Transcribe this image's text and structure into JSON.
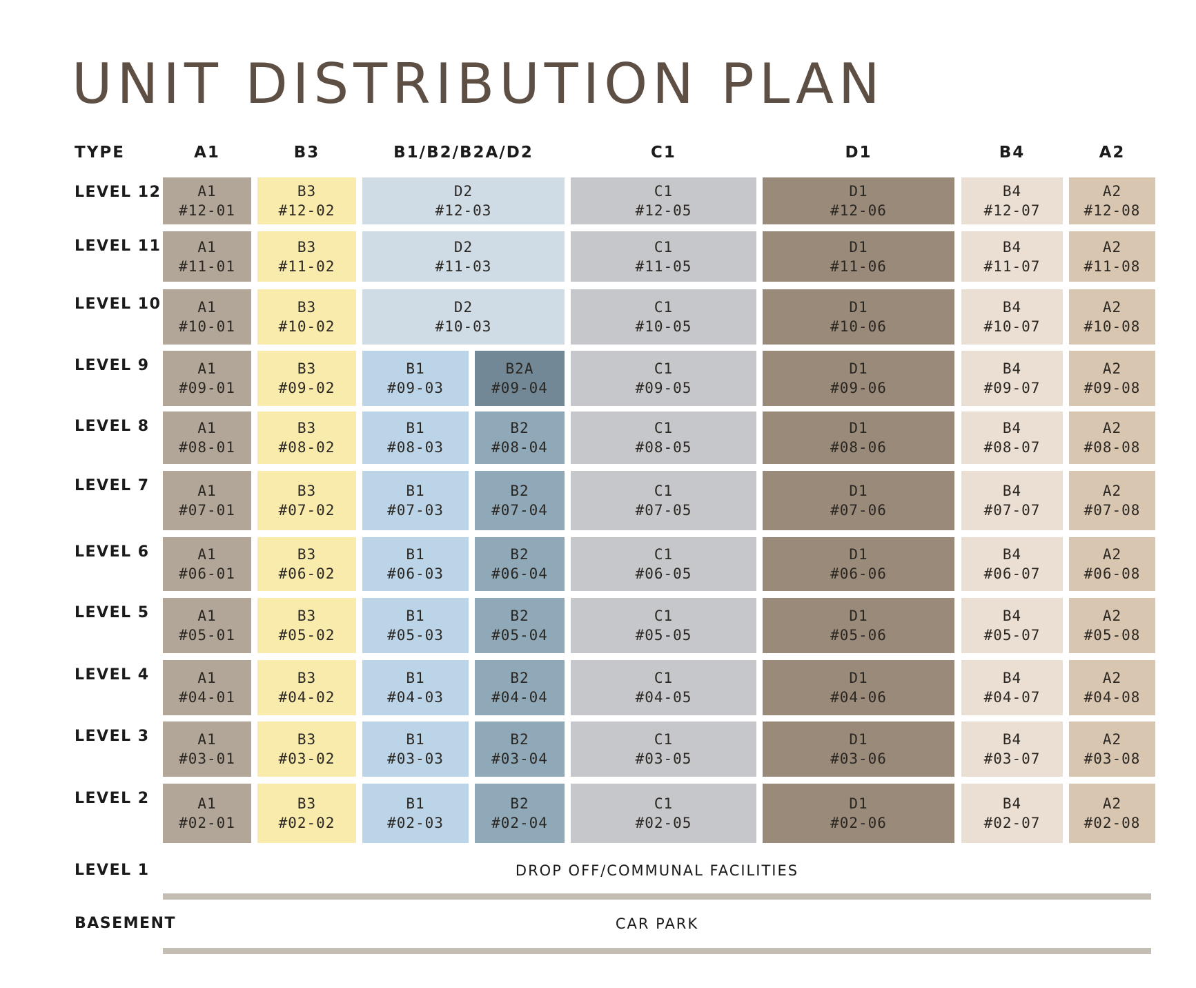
{
  "title": "UNIT DISTRIBUTION PLAN",
  "header": {
    "type_label": "TYPE",
    "columns": [
      "A1",
      "B3",
      "B1/B2/B2A/D2",
      "C1",
      "D1",
      "B4",
      "A2"
    ]
  },
  "type_colors": {
    "A1": "#b1a697",
    "B3": "#f8ebac",
    "D2": "#cfdce6",
    "B1": "#bbd4e7",
    "B2": "#8fa9b8",
    "B2A": "#728896",
    "C1": "#c5c7ca",
    "D1": "#9a8a7a",
    "B4": "#eadfd2",
    "A2": "#d9c6b0"
  },
  "levels": [
    {
      "label": "LEVEL 12",
      "units": [
        {
          "type": "A1",
          "unit": "#12-01"
        },
        {
          "type": "B3",
          "unit": "#12-02"
        },
        {
          "type": "D2",
          "unit": "#12-03"
        },
        {
          "type": "C1",
          "unit": "#12-05"
        },
        {
          "type": "D1",
          "unit": "#12-06"
        },
        {
          "type": "B4",
          "unit": "#12-07"
        },
        {
          "type": "A2",
          "unit": "#12-08"
        }
      ]
    },
    {
      "label": "LEVEL 11",
      "units": [
        {
          "type": "A1",
          "unit": "#11-01"
        },
        {
          "type": "B3",
          "unit": "#11-02"
        },
        {
          "type": "D2",
          "unit": "#11-03"
        },
        {
          "type": "C1",
          "unit": "#11-05"
        },
        {
          "type": "D1",
          "unit": "#11-06"
        },
        {
          "type": "B4",
          "unit": "#11-07"
        },
        {
          "type": "A2",
          "unit": "#11-08"
        }
      ]
    },
    {
      "label": "LEVEL 10",
      "units": [
        {
          "type": "A1",
          "unit": "#10-01"
        },
        {
          "type": "B3",
          "unit": "#10-02"
        },
        {
          "type": "D2",
          "unit": "#10-03"
        },
        {
          "type": "C1",
          "unit": "#10-05"
        },
        {
          "type": "D1",
          "unit": "#10-06"
        },
        {
          "type": "B4",
          "unit": "#10-07"
        },
        {
          "type": "A2",
          "unit": "#10-08"
        }
      ]
    },
    {
      "label": "LEVEL 9",
      "units": [
        {
          "type": "A1",
          "unit": "#09-01"
        },
        {
          "type": "B3",
          "unit": "#09-02"
        },
        {
          "type": "B1",
          "unit": "#09-03"
        },
        {
          "type": "B2A",
          "unit": "#09-04"
        },
        {
          "type": "C1",
          "unit": "#09-05"
        },
        {
          "type": "D1",
          "unit": "#09-06"
        },
        {
          "type": "B4",
          "unit": "#09-07"
        },
        {
          "type": "A2",
          "unit": "#09-08"
        }
      ]
    },
    {
      "label": "LEVEL 8",
      "units": [
        {
          "type": "A1",
          "unit": "#08-01"
        },
        {
          "type": "B3",
          "unit": "#08-02"
        },
        {
          "type": "B1",
          "unit": "#08-03"
        },
        {
          "type": "B2",
          "unit": "#08-04"
        },
        {
          "type": "C1",
          "unit": "#08-05"
        },
        {
          "type": "D1",
          "unit": "#08-06"
        },
        {
          "type": "B4",
          "unit": "#08-07"
        },
        {
          "type": "A2",
          "unit": "#08-08"
        }
      ]
    },
    {
      "label": "LEVEL 7",
      "units": [
        {
          "type": "A1",
          "unit": "#07-01"
        },
        {
          "type": "B3",
          "unit": "#07-02"
        },
        {
          "type": "B1",
          "unit": "#07-03"
        },
        {
          "type": "B2",
          "unit": "#07-04"
        },
        {
          "type": "C1",
          "unit": "#07-05"
        },
        {
          "type": "D1",
          "unit": "#07-06"
        },
        {
          "type": "B4",
          "unit": "#07-07"
        },
        {
          "type": "A2",
          "unit": "#07-08"
        }
      ]
    },
    {
      "label": "LEVEL 6",
      "units": [
        {
          "type": "A1",
          "unit": "#06-01"
        },
        {
          "type": "B3",
          "unit": "#06-02"
        },
        {
          "type": "B1",
          "unit": "#06-03"
        },
        {
          "type": "B2",
          "unit": "#06-04"
        },
        {
          "type": "C1",
          "unit": "#06-05"
        },
        {
          "type": "D1",
          "unit": "#06-06"
        },
        {
          "type": "B4",
          "unit": "#06-07"
        },
        {
          "type": "A2",
          "unit": "#06-08"
        }
      ]
    },
    {
      "label": "LEVEL 5",
      "units": [
        {
          "type": "A1",
          "unit": "#05-01"
        },
        {
          "type": "B3",
          "unit": "#05-02"
        },
        {
          "type": "B1",
          "unit": "#05-03"
        },
        {
          "type": "B2",
          "unit": "#05-04"
        },
        {
          "type": "C1",
          "unit": "#05-05"
        },
        {
          "type": "D1",
          "unit": "#05-06"
        },
        {
          "type": "B4",
          "unit": "#05-07"
        },
        {
          "type": "A2",
          "unit": "#05-08"
        }
      ]
    },
    {
      "label": "LEVEL 4",
      "units": [
        {
          "type": "A1",
          "unit": "#04-01"
        },
        {
          "type": "B3",
          "unit": "#04-02"
        },
        {
          "type": "B1",
          "unit": "#04-03"
        },
        {
          "type": "B2",
          "unit": "#04-04"
        },
        {
          "type": "C1",
          "unit": "#04-05"
        },
        {
          "type": "D1",
          "unit": "#04-06"
        },
        {
          "type": "B4",
          "unit": "#04-07"
        },
        {
          "type": "A2",
          "unit": "#04-08"
        }
      ]
    },
    {
      "label": "LEVEL 3",
      "units": [
        {
          "type": "A1",
          "unit": "#03-01"
        },
        {
          "type": "B3",
          "unit": "#03-02"
        },
        {
          "type": "B1",
          "unit": "#03-03"
        },
        {
          "type": "B2",
          "unit": "#03-04"
        },
        {
          "type": "C1",
          "unit": "#03-05"
        },
        {
          "type": "D1",
          "unit": "#03-06"
        },
        {
          "type": "B4",
          "unit": "#03-07"
        },
        {
          "type": "A2",
          "unit": "#03-08"
        }
      ]
    },
    {
      "label": "LEVEL 2",
      "units": [
        {
          "type": "A1",
          "unit": "#02-01"
        },
        {
          "type": "B3",
          "unit": "#02-02"
        },
        {
          "type": "B1",
          "unit": "#02-03"
        },
        {
          "type": "B2",
          "unit": "#02-04"
        },
        {
          "type": "C1",
          "unit": "#02-05"
        },
        {
          "type": "D1",
          "unit": "#02-06"
        },
        {
          "type": "B4",
          "unit": "#02-07"
        },
        {
          "type": "A2",
          "unit": "#02-08"
        }
      ]
    }
  ],
  "level1": {
    "label": "LEVEL 1",
    "text": "DROP OFF/COMMUNAL FACILITIES"
  },
  "basement": {
    "label": "BASEMENT",
    "text": "CAR PARK"
  }
}
